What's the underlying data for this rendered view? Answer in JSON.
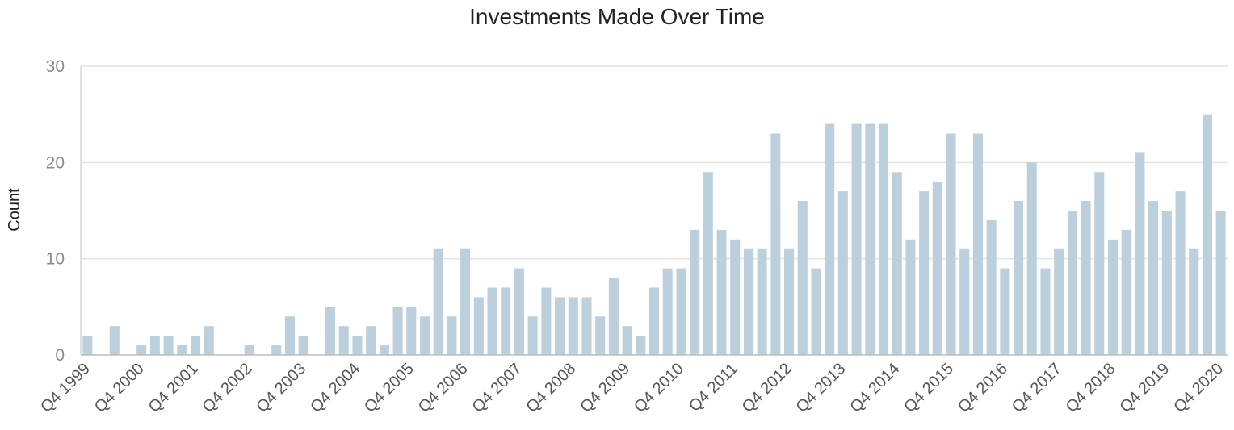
{
  "chart_data": {
    "type": "bar",
    "title": "Investments Made Over Time",
    "xlabel": "",
    "ylabel": "Count",
    "ylim": [
      0,
      30
    ],
    "yticks": [
      0,
      10,
      20,
      30
    ],
    "grid": true,
    "bar_color": "#bccfdc",
    "categories": [
      "Q4 1999",
      "Q1 2000",
      "Q2 2000",
      "Q3 2000",
      "Q4 2000",
      "Q1 2001",
      "Q2 2001",
      "Q3 2001",
      "Q4 2001",
      "Q1 2002",
      "Q2 2002",
      "Q3 2002",
      "Q4 2002",
      "Q1 2003",
      "Q2 2003",
      "Q3 2003",
      "Q4 2003",
      "Q1 2004",
      "Q2 2004",
      "Q3 2004",
      "Q4 2004",
      "Q1 2005",
      "Q2 2005",
      "Q3 2005",
      "Q4 2005",
      "Q1 2006",
      "Q2 2006",
      "Q3 2006",
      "Q4 2006",
      "Q1 2007",
      "Q2 2007",
      "Q3 2007",
      "Q4 2007",
      "Q1 2008",
      "Q2 2008",
      "Q3 2008",
      "Q4 2008",
      "Q1 2009",
      "Q2 2009",
      "Q3 2009",
      "Q4 2009",
      "Q1 2010",
      "Q2 2010",
      "Q3 2010",
      "Q4 2010",
      "Q1 2011",
      "Q2 2011",
      "Q3 2011",
      "Q4 2011",
      "Q1 2012",
      "Q2 2012",
      "Q3 2012",
      "Q4 2012",
      "Q1 2013",
      "Q2 2013",
      "Q3 2013",
      "Q4 2013",
      "Q1 2014",
      "Q2 2014",
      "Q3 2014",
      "Q4 2014",
      "Q1 2015",
      "Q2 2015",
      "Q3 2015",
      "Q4 2015",
      "Q1 2016",
      "Q2 2016",
      "Q3 2016",
      "Q4 2016",
      "Q1 2017",
      "Q2 2017",
      "Q3 2017",
      "Q4 2017",
      "Q1 2018",
      "Q2 2018",
      "Q3 2018",
      "Q4 2018",
      "Q1 2019",
      "Q2 2019",
      "Q3 2019",
      "Q4 2019",
      "Q1 2020",
      "Q2 2020",
      "Q3 2020",
      "Q4 2020"
    ],
    "values": [
      2,
      0,
      3,
      0,
      1,
      2,
      2,
      1,
      2,
      3,
      0,
      0,
      1,
      0,
      1,
      4,
      2,
      0,
      5,
      3,
      2,
      3,
      1,
      5,
      5,
      4,
      11,
      4,
      11,
      6,
      7,
      7,
      9,
      4,
      7,
      6,
      6,
      6,
      4,
      8,
      3,
      2,
      7,
      9,
      9,
      13,
      19,
      13,
      12,
      11,
      11,
      23,
      11,
      16,
      9,
      24,
      17,
      24,
      24,
      24,
      19,
      12,
      17,
      18,
      23,
      11,
      23,
      14,
      9,
      16,
      20,
      9,
      11,
      15,
      16,
      19,
      12,
      13,
      21,
      16,
      15,
      17,
      11,
      25,
      15
    ],
    "tick_labels": [
      "Q4 1999",
      "Q4 2000",
      "Q4 2001",
      "Q4 2002",
      "Q4 2003",
      "Q4 2004",
      "Q4 2005",
      "Q4 2006",
      "Q4 2007",
      "Q4 2008",
      "Q4 2009",
      "Q4 2010",
      "Q4 2011",
      "Q4 2012",
      "Q4 2013",
      "Q4 2014",
      "Q4 2015",
      "Q4 2016",
      "Q4 2017",
      "Q4 2018",
      "Q4 2019",
      "Q4 2020"
    ]
  }
}
